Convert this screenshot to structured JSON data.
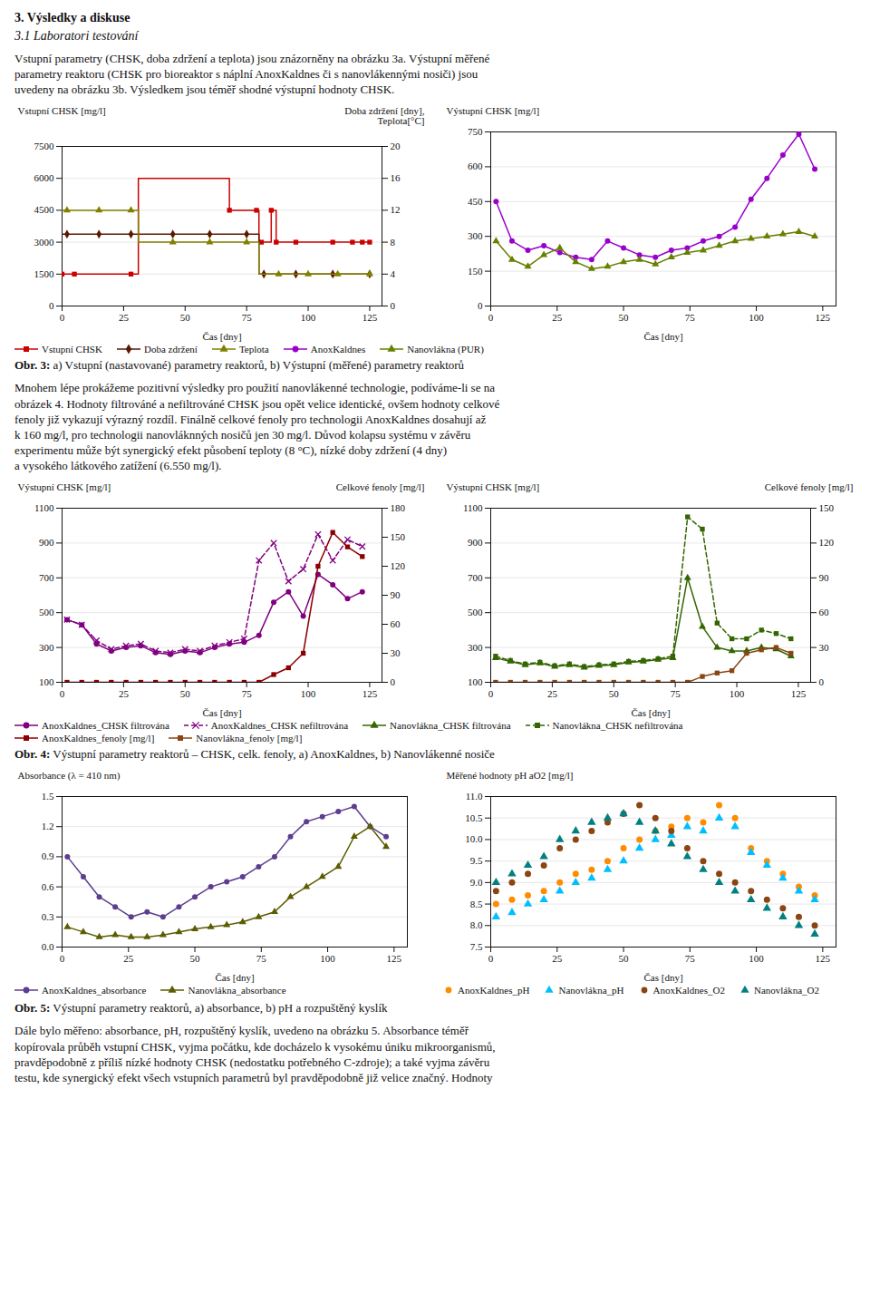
{
  "title": "3.      Výsledky a diskuse",
  "subtitle": "3.1      Laboratori testování",
  "paragraphs": [
    "Vstupní parametry (CHSK, doba zdržení a teplota) jsou znázorněny na obrázku 3a. Výstupní měřené\nparametry reaktoru (CHSK pro bioreaktor s náplní AnoxKaldnes či s nanovlákennými nosiči) jsou\nuvedeny na obrázku 3b. Výsledkem jsou téměř shodné výstupní hodnoty CHSK.",
    "Mnohem lépe prokážeme pozitivní výsledky pro použití nanovlákenné technologie, podíváme-li se na\nobrázek 4. Hodnoty filtrováné a nefiltrováné CHSK jsou opět velice identické, ovšem hodnoty celkové\nfenoly již vykazují výrazný rozdíl. Finálně celkové fenoly pro technologii AnoxKaldnes dosahují až\nk 160 mg/l, pro technologii nanovláknných nosičů jen 30 mg/l. Důvod kolapsu systému v závěru\nexperimentu může být synergický efekt působení teploty (8 °C), nízké doby zdržení (4 dny)\na vysokého látkového zatížení (6.550 mg/l).",
    "Dále bylo měřeno: absorbance, pH, rozpuštěný kyslík, uvedeno na obrázku 5. Absorbance téměř\nkopírovala průběh vstupní CHSK, vyjma počátku, kde docházelo k vysokému úniku mikroorganismů,\npravděpodobně z příliš nízké hodnoty CHSK (nedostatku potřebného C-zdroje); a také vyjma závěru\ntestu, kde synergický efekt všech vstupních parametrů byl pravděpodobně již velice značný. Hodnoty"
  ],
  "captions": [
    {
      "label": "Obr. 3:",
      "text": " a) Vstupní (nastavované) parametry reaktorů, b) Výstupní (měřené) parametry reaktorů"
    },
    {
      "label": "Obr. 4:",
      "text": " Výstupní parametry reaktorů – CHSK, celk. fenoly, a) AnoxKaldnes, b) Nanovlákenné nosiče"
    },
    {
      "label": "Obr. 5:",
      "text": " Výstupní parametry reaktorů, a) absorbance, b) pH a rozpuštěný kyslík"
    }
  ],
  "chart_data": [
    {
      "type": "line",
      "x_label": "Čas [dny]",
      "y_label": "Vstupní CHSK [mg/l]",
      "y2_label": "Doba zdržení [dny],\nTeplota[°C]",
      "xlim": [
        0,
        130
      ],
      "xticks": [
        0,
        25,
        50,
        75,
        100,
        125
      ],
      "ylim": [
        0,
        7500
      ],
      "yticks": [
        0,
        1500,
        3000,
        4500,
        6000,
        7500
      ],
      "y2lim": [
        0,
        20
      ],
      "y2ticks": [
        0,
        4,
        8,
        12,
        16,
        20
      ],
      "grid": true,
      "series": [
        {
          "name": "Vstupní CHSK",
          "color": "#CC0000",
          "type": "step",
          "line_style": "solid",
          "marker": "square",
          "x": [
            0,
            5,
            28,
            30,
            31,
            65,
            67,
            68,
            79,
            80,
            81,
            85,
            86,
            87,
            125
          ],
          "values": [
            1500,
            1500,
            1500,
            1500,
            6000,
            6000,
            6000,
            4500,
            4500,
            3000,
            3000,
            4500,
            4500,
            3000,
            3000
          ],
          "points_x": [
            0,
            5,
            28,
            68,
            79,
            81,
            85,
            87,
            95,
            110,
            118,
            122,
            125
          ],
          "points_values": [
            1500,
            1500,
            1500,
            4500,
            4500,
            3000,
            4500,
            3000,
            3000,
            3000,
            3000,
            3000,
            3000
          ]
        },
        {
          "name": "Doba zdržení",
          "color": "#5a1a00",
          "type": "step",
          "line_style": "solid",
          "marker": "diamond",
          "axis": "y2",
          "x": [
            0,
            30,
            31,
            79,
            80,
            125
          ],
          "values": [
            9,
            9,
            9,
            9,
            4,
            4
          ],
          "points_x": [
            2,
            15,
            28,
            45,
            60,
            75,
            82,
            95,
            110,
            125
          ],
          "points_values": [
            9,
            9,
            9,
            9,
            9,
            9,
            4,
            4,
            4,
            4
          ]
        },
        {
          "name": "Teplota",
          "color": "#808000",
          "type": "step",
          "line_style": "solid",
          "marker": "triangle",
          "axis": "y2",
          "x": [
            0,
            30,
            31,
            79,
            80,
            125
          ],
          "values": [
            12,
            12,
            8,
            8,
            4,
            4
          ],
          "points_x": [
            2,
            15,
            28,
            45,
            60,
            75,
            88,
            100,
            112,
            125
          ],
          "points_values": [
            12,
            12,
            12,
            8,
            8,
            8,
            4,
            4,
            4,
            4
          ]
        }
      ]
    },
    {
      "type": "line",
      "x_label": "Čas [dny]",
      "y_label": "Výstupní CHSK [mg/l]",
      "xlim": [
        0,
        130
      ],
      "xticks": [
        0,
        25,
        50,
        75,
        100,
        125
      ],
      "ylim": [
        0,
        750
      ],
      "yticks": [
        0,
        150,
        300,
        450,
        600,
        750
      ],
      "grid": true,
      "x": [
        2,
        8,
        14,
        20,
        26,
        32,
        38,
        44,
        50,
        56,
        62,
        68,
        74,
        80,
        86,
        92,
        98,
        104,
        110,
        116,
        122
      ],
      "series": [
        {
          "name": "AnoxKaldnes",
          "color": "#9900CC",
          "line_style": "solid",
          "marker": "circle",
          "values": [
            450,
            280,
            240,
            260,
            230,
            210,
            200,
            280,
            250,
            220,
            210,
            240,
            250,
            280,
            300,
            340,
            460,
            550,
            650,
            740,
            590
          ]
        },
        {
          "name": "Nanovlákna (PUR)",
          "color": "#668000",
          "line_style": "solid",
          "marker": "triangle",
          "values": [
            280,
            200,
            170,
            220,
            250,
            190,
            160,
            170,
            190,
            200,
            180,
            210,
            230,
            240,
            260,
            280,
            290,
            300,
            310,
            320,
            300
          ]
        }
      ]
    },
    {
      "type": "line",
      "x_label": "Čas [dny]",
      "y_label": "Výstupní CHSK [mg/l]",
      "y2_label": "Celkové fenoly [mg/l]",
      "xlim": [
        0,
        130
      ],
      "xticks": [
        0,
        25,
        50,
        75,
        100,
        125
      ],
      "ylim": [
        100,
        1100
      ],
      "yticks": [
        100,
        300,
        500,
        700,
        900,
        1100
      ],
      "y2lim": [
        0,
        180
      ],
      "y2ticks": [
        0,
        30,
        60,
        90,
        120,
        150,
        180
      ],
      "grid": true,
      "x": [
        2,
        8,
        14,
        20,
        26,
        32,
        38,
        44,
        50,
        56,
        62,
        68,
        74,
        80,
        86,
        92,
        98,
        104,
        110,
        116,
        122
      ],
      "series": [
        {
          "name": "AnoxKaldnes_CHSK filtrována",
          "color": "#800080",
          "line_style": "solid",
          "marker": "circle",
          "values": [
            460,
            430,
            320,
            280,
            300,
            310,
            270,
            260,
            280,
            270,
            300,
            320,
            330,
            370,
            560,
            620,
            480,
            720,
            660,
            580,
            620
          ]
        },
        {
          "name": "AnoxKaldnes_CHSK nefiltrována",
          "color": "#800080",
          "line_style": "dashed",
          "marker": "x",
          "values": [
            460,
            430,
            340,
            290,
            310,
            320,
            280,
            270,
            290,
            280,
            310,
            330,
            350,
            800,
            900,
            680,
            750,
            950,
            800,
            920,
            880
          ]
        },
        {
          "name": "AnoxKaldnes_fenoly [mg/l]",
          "color": "#8B0000",
          "line_style": "solid",
          "marker": "square",
          "axis": "y2",
          "values": [
            0,
            0,
            0,
            0,
            0,
            0,
            0,
            0,
            0,
            0,
            0,
            0,
            0,
            0,
            8,
            15,
            30,
            120,
            155,
            140,
            130
          ]
        }
      ]
    },
    {
      "type": "line",
      "x_label": "Čas [dny]",
      "y_label": "Výstupní CHSK [mg/l]",
      "y2_label": "Celkové fenoly [mg/l]",
      "xlim": [
        0,
        130
      ],
      "xticks": [
        0,
        25,
        50,
        75,
        100,
        125
      ],
      "ylim": [
        100,
        1100
      ],
      "yticks": [
        100,
        300,
        500,
        700,
        900,
        1100
      ],
      "y2lim": [
        0,
        150
      ],
      "y2ticks": [
        0,
        30,
        60,
        90,
        120,
        150
      ],
      "grid": true,
      "x": [
        2,
        8,
        14,
        20,
        26,
        32,
        38,
        44,
        50,
        56,
        62,
        68,
        74,
        80,
        86,
        92,
        98,
        104,
        110,
        116,
        122
      ],
      "series": [
        {
          "name": "Nanovlákna_CHSK filtrována",
          "color": "#336600",
          "line_style": "solid",
          "marker": "triangle",
          "values": [
            240,
            220,
            200,
            210,
            190,
            200,
            185,
            195,
            200,
            215,
            220,
            230,
            240,
            700,
            420,
            300,
            280,
            280,
            300,
            290,
            250
          ]
        },
        {
          "name": "Nanovlákna_CHSK nefiltrována",
          "color": "#336600",
          "line_style": "dashed",
          "marker": "square",
          "values": [
            250,
            225,
            205,
            215,
            195,
            205,
            190,
            200,
            205,
            220,
            225,
            235,
            250,
            1050,
            980,
            440,
            350,
            350,
            400,
            380,
            350
          ]
        },
        {
          "name": "Nanovlákna_fenoly [mg/l]",
          "color": "#8B4513",
          "line_style": "solid",
          "marker": "square",
          "axis": "y2",
          "values": [
            0,
            0,
            0,
            0,
            0,
            0,
            0,
            0,
            0,
            0,
            0,
            0,
            0,
            0,
            5,
            8,
            10,
            25,
            28,
            30,
            25
          ]
        }
      ]
    },
    {
      "type": "line",
      "x_label": "Čas [dny]",
      "y_label": "Absorbance (λ = 410 nm)",
      "xlim": [
        0,
        130
      ],
      "xticks": [
        0,
        25,
        50,
        75,
        100,
        125
      ],
      "ylim": [
        0,
        1.5
      ],
      "yticks": [
        {
          "value": 0,
          "label": "0.0"
        },
        0.3,
        0.6,
        0.9,
        1.2,
        1.5
      ],
      "grid": true,
      "x": [
        2,
        8,
        14,
        20,
        26,
        32,
        38,
        44,
        50,
        56,
        62,
        68,
        74,
        80,
        86,
        92,
        98,
        104,
        110,
        116,
        122
      ],
      "series": [
        {
          "name": "AnoxKaldnes_absorbance",
          "color": "#5c3d8f",
          "line_style": "solid",
          "marker": "circle",
          "values": [
            0.9,
            0.7,
            0.5,
            0.4,
            0.3,
            0.35,
            0.3,
            0.4,
            0.5,
            0.6,
            0.65,
            0.7,
            0.8,
            0.9,
            1.1,
            1.25,
            1.3,
            1.35,
            1.4,
            1.2,
            1.1
          ]
        },
        {
          "name": "Nanovlákna_absorbance",
          "color": "#5c5c00",
          "line_style": "solid",
          "marker": "triangle",
          "values": [
            0.2,
            0.15,
            0.1,
            0.12,
            0.1,
            0.1,
            0.12,
            0.15,
            0.18,
            0.2,
            0.22,
            0.25,
            0.3,
            0.35,
            0.5,
            0.6,
            0.7,
            0.8,
            1.1,
            1.2,
            1.0
          ]
        }
      ]
    },
    {
      "type": "scatter",
      "x_label": "Čas [dny]",
      "y_label": "Měřené hodnoty pH aO2 [mg/l]",
      "xlim": [
        0,
        130
      ],
      "xticks": [
        0,
        25,
        50,
        75,
        100,
        125
      ],
      "ylim": [
        7.5,
        11.0
      ],
      "yticks": [
        7.5,
        {
          "value": 8,
          "label": "8.0"
        },
        8.5,
        {
          "value": 9,
          "label": "9.0"
        },
        9.5,
        {
          "value": 10,
          "label": "10.0"
        },
        10.5,
        {
          "value": 11,
          "label": "11.0"
        }
      ],
      "grid": true,
      "x": [
        2,
        8,
        14,
        20,
        26,
        32,
        38,
        44,
        50,
        56,
        62,
        68,
        74,
        80,
        86,
        92,
        98,
        104,
        110,
        116,
        122
      ],
      "series": [
        {
          "name": "AnoxKaldnes_pH",
          "color": "#FF8C00",
          "marker": "circle",
          "values": [
            8.5,
            8.6,
            8.7,
            8.8,
            9.0,
            9.2,
            9.3,
            9.5,
            9.8,
            10.0,
            10.2,
            10.3,
            10.5,
            10.4,
            10.8,
            10.5,
            9.8,
            9.5,
            9.2,
            8.9,
            8.7
          ]
        },
        {
          "name": "Nanovlákna_pH",
          "color": "#00BFFF",
          "marker": "triangle",
          "values": [
            8.2,
            8.3,
            8.5,
            8.6,
            8.8,
            9.0,
            9.1,
            9.3,
            9.5,
            9.8,
            10.0,
            10.1,
            10.3,
            10.2,
            10.5,
            10.3,
            9.7,
            9.4,
            9.1,
            8.8,
            8.6
          ]
        },
        {
          "name": "AnoxKaldnes_O2",
          "color": "#8B4513",
          "marker": "circle",
          "values": [
            8.8,
            9.0,
            9.2,
            9.4,
            9.8,
            10.0,
            10.2,
            10.4,
            10.6,
            10.8,
            10.5,
            10.2,
            9.8,
            9.5,
            9.2,
            9.0,
            8.8,
            8.6,
            8.4,
            8.2,
            8.0
          ]
        },
        {
          "name": "Nanovlákna_O2",
          "color": "#008080",
          "marker": "triangle",
          "values": [
            9.0,
            9.2,
            9.4,
            9.6,
            10.0,
            10.2,
            10.4,
            10.5,
            10.6,
            10.4,
            10.2,
            9.9,
            9.6,
            9.3,
            9.0,
            8.8,
            8.6,
            8.4,
            8.2,
            8.0,
            7.8
          ]
        }
      ]
    }
  ]
}
